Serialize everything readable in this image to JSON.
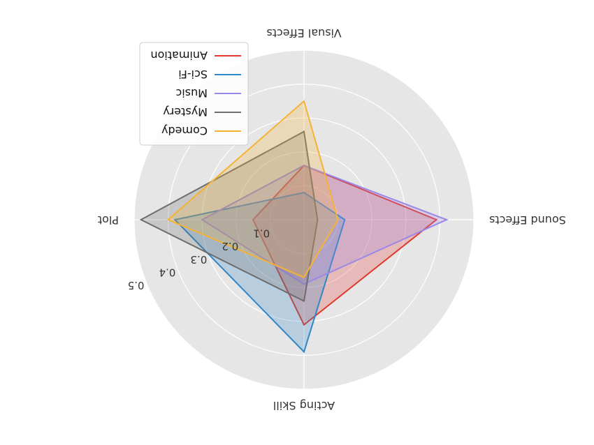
{
  "chart_data": {
    "type": "radar",
    "axes": [
      "Plot",
      "Acting Skill",
      "Sound Effects",
      "Visual Effects"
    ],
    "radial_ticks": [
      "0.1",
      "0.2",
      "0.3",
      "0.4",
      "0.5"
    ],
    "rmax": 0.5,
    "grid": true,
    "legend_position": "upper-right",
    "series": [
      {
        "name": "Comedy",
        "color": "#f5b335",
        "values": [
          0.4,
          0.17,
          0.1,
          0.35
        ]
      },
      {
        "name": "Mystery",
        "color": "#6d6d6d",
        "values": [
          0.48,
          0.24,
          0.04,
          0.26
        ]
      },
      {
        "name": "Music",
        "color": "#9b87e8",
        "values": [
          0.3,
          0.19,
          0.42,
          0.16
        ]
      },
      {
        "name": "Sci-Fi",
        "color": "#2f86c8",
        "values": [
          0.38,
          0.39,
          0.12,
          0.08
        ]
      },
      {
        "name": "Animation",
        "color": "#e2382e",
        "values": [
          0.15,
          0.31,
          0.39,
          0.16
        ]
      }
    ]
  }
}
